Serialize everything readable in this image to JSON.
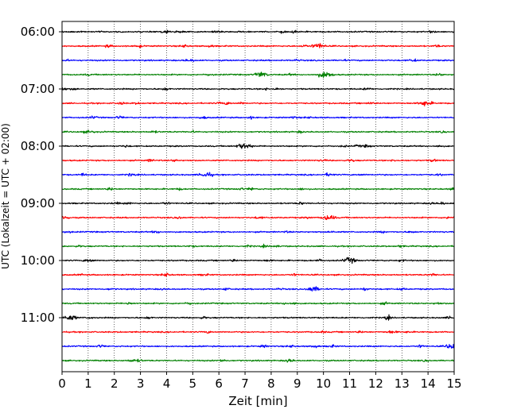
{
  "chart_data": {
    "type": "line",
    "chart_kind": "helicorder",
    "xlabel": "Zeit  [min]",
    "ylabel": "UTC (Lokalzeit = UTC + 02:00)",
    "xlim": [
      0,
      15
    ],
    "x_ticks": [
      0,
      1,
      2,
      3,
      4,
      5,
      6,
      7,
      8,
      9,
      10,
      11,
      12,
      13,
      14,
      15
    ],
    "x_grid": "dotted vertical lines at each minute",
    "y_ticks": [
      "06:00",
      "07:00",
      "08:00",
      "09:00",
      "10:00",
      "11:00"
    ],
    "trace_colors": [
      "#000000",
      "#ff0000",
      "#0000ff",
      "#008000"
    ],
    "trace_start_times": [
      "06:00",
      "06:15",
      "06:30",
      "06:45",
      "07:00",
      "07:15",
      "07:30",
      "07:45",
      "08:00",
      "08:15",
      "08:30",
      "08:45",
      "09:00",
      "09:15",
      "09:30",
      "09:45",
      "10:00",
      "10:15",
      "10:30",
      "10:45",
      "11:00",
      "11:15",
      "11:30",
      "11:45"
    ],
    "trace_duration_min": 15,
    "notable_bursts": [
      {
        "trace": "06:15",
        "minute": 9.8
      },
      {
        "trace": "06:45",
        "minute": 7.6
      },
      {
        "trace": "06:45",
        "minute": 10.1
      },
      {
        "trace": "07:15",
        "minute": 13.9
      },
      {
        "trace": "08:00",
        "minute": 7.0
      },
      {
        "trace": "08:30",
        "minute": 5.5
      },
      {
        "trace": "09:15",
        "minute": 10.2
      },
      {
        "trace": "10:00",
        "minute": 11.0
      },
      {
        "trace": "10:30",
        "minute": 9.6
      },
      {
        "trace": "11:00",
        "minute": 0.3
      },
      {
        "trace": "11:30",
        "minute": 14.9
      }
    ]
  }
}
